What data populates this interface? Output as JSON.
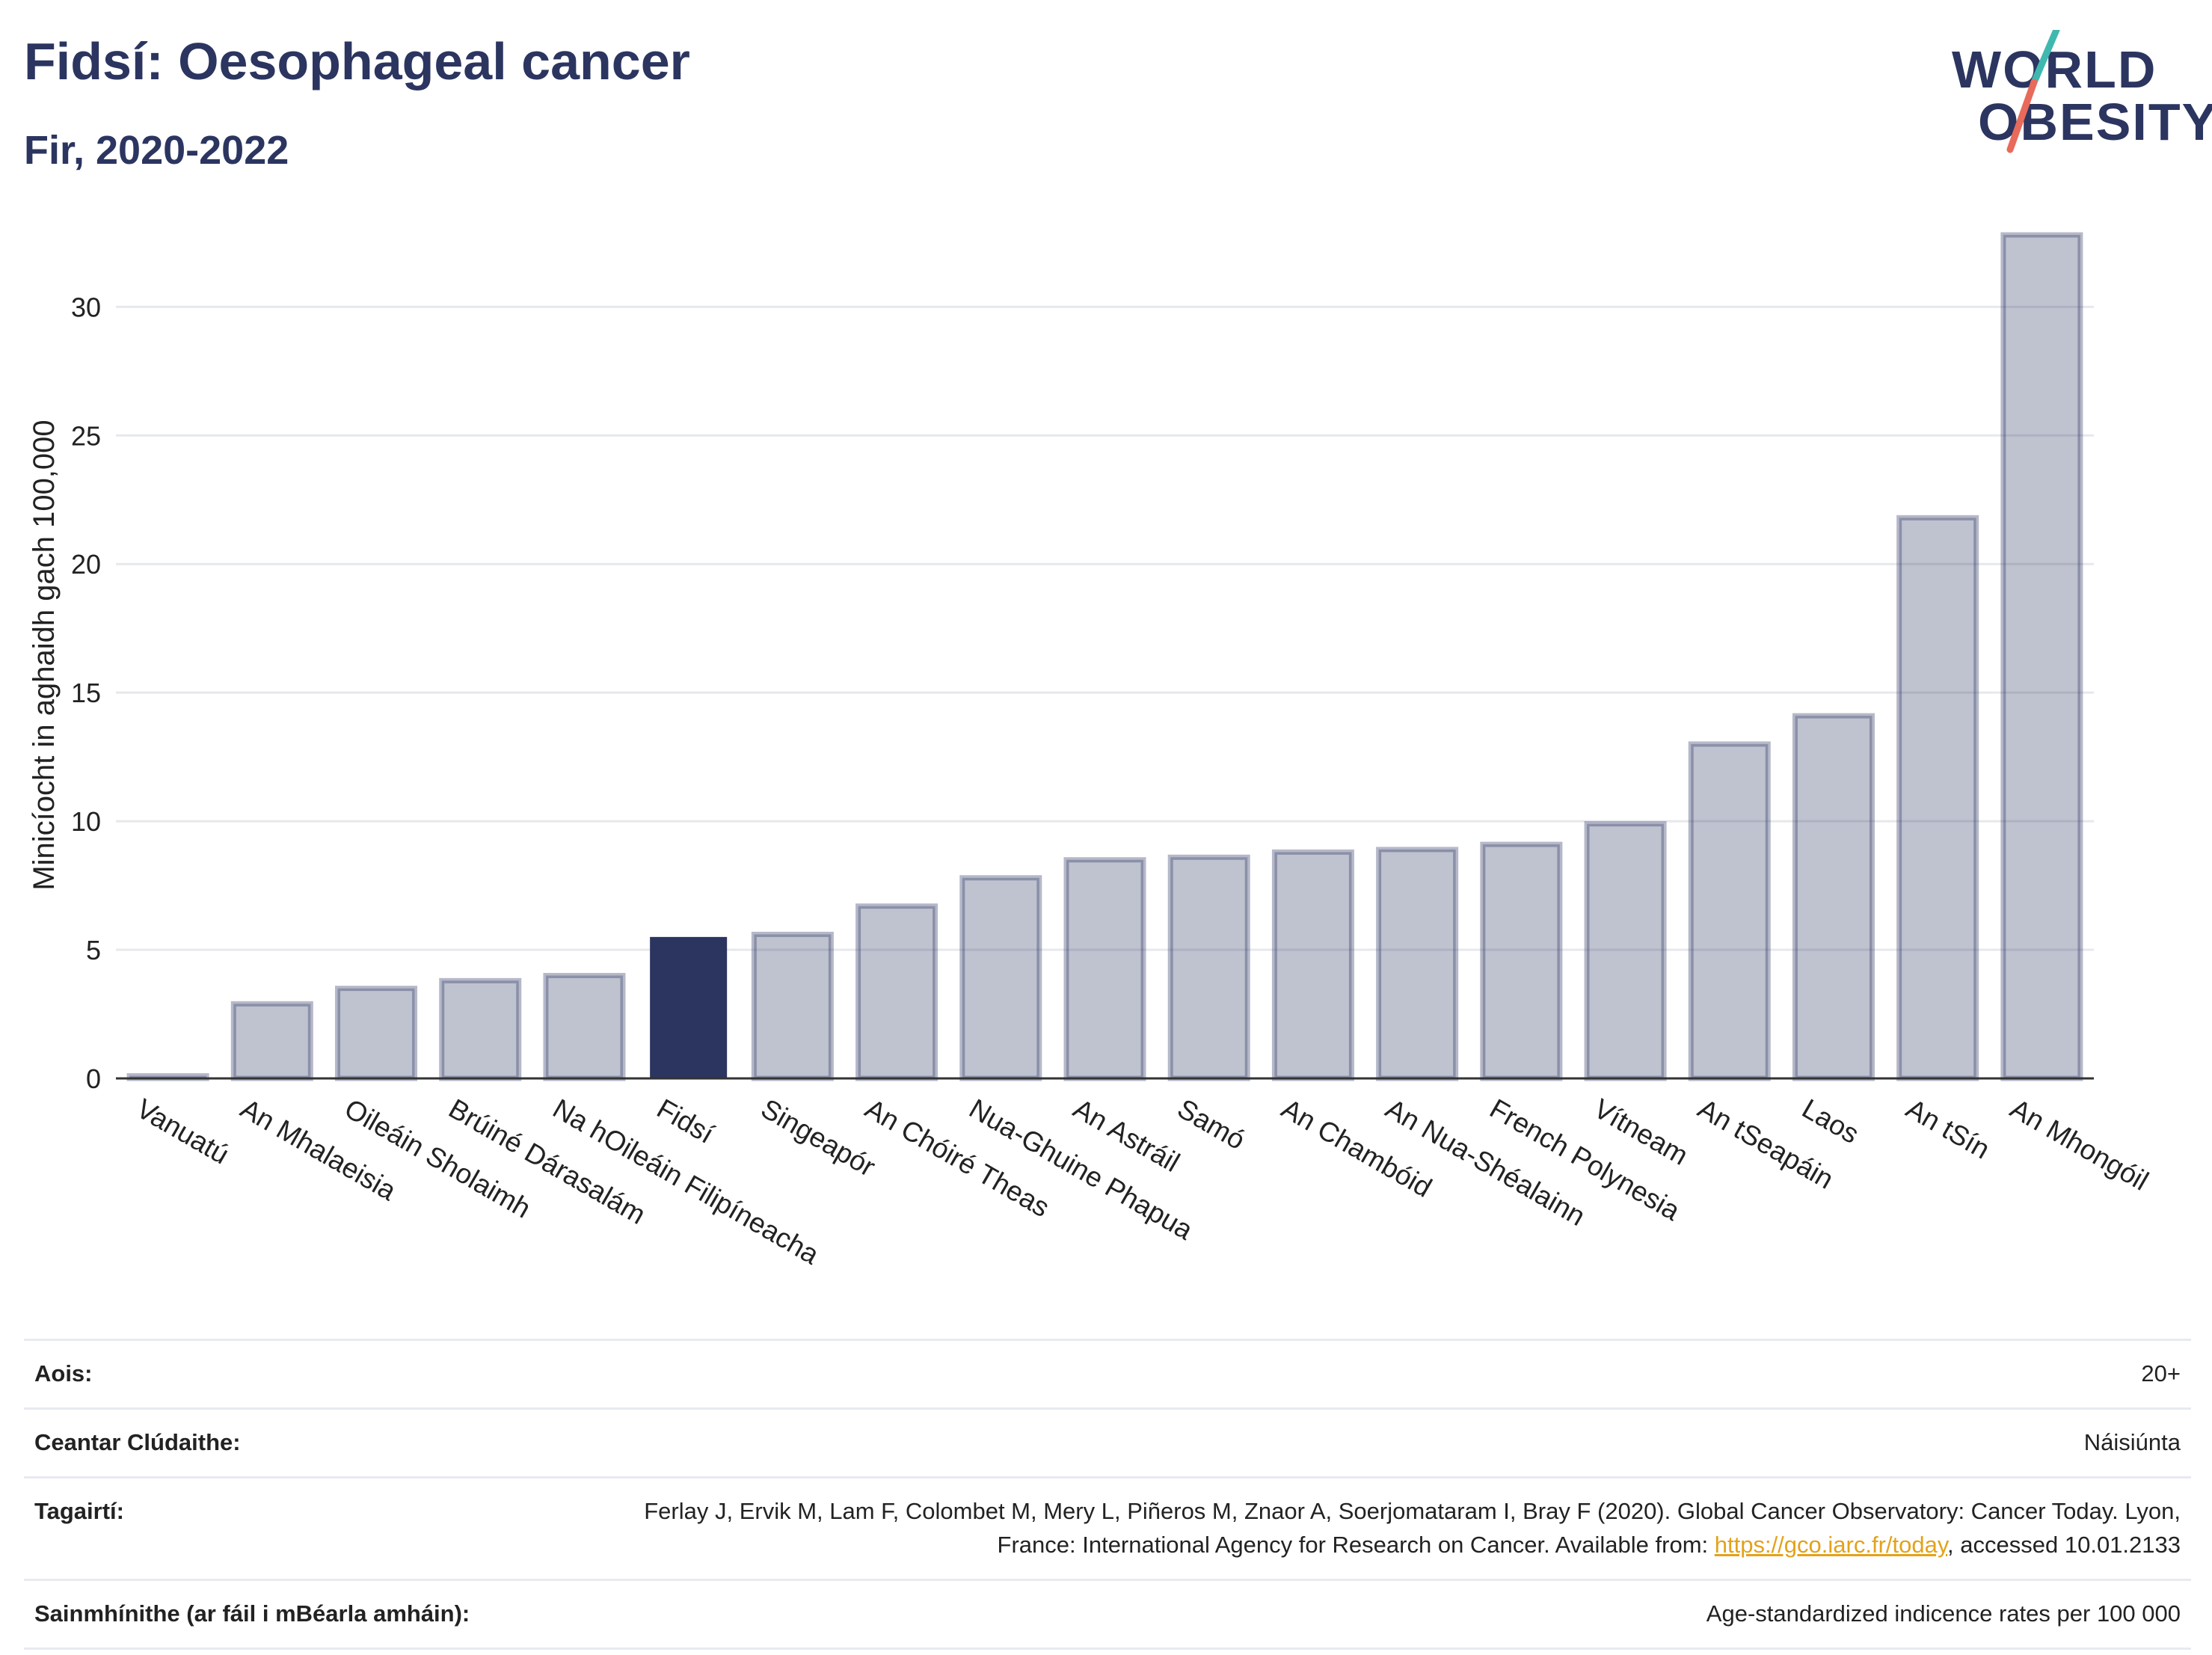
{
  "header": {
    "title": "Fidsí: Oesophageal cancer",
    "subtitle": "Fir, 2020-2022"
  },
  "logo": {
    "line1": "WORLD",
    "line2": "OBESITY",
    "colors": {
      "text": "#2b3560",
      "slash_top": "#3fb8af",
      "slash_bottom": "#e86a5a"
    }
  },
  "chart_data": {
    "type": "bar",
    "title": "Fidsí: Oesophageal cancer",
    "subtitle": "Fir, 2020-2022",
    "xlabel": "",
    "ylabel": "Minicíocht in aghaidh gach 100,000",
    "ylim": [
      0,
      33.5
    ],
    "yticks": [
      0,
      5,
      10,
      15,
      20,
      25,
      30
    ],
    "grid": true,
    "highlight_category": "Fidsí",
    "colors": {
      "default": "#2b3560",
      "default_opacity": 0.3,
      "highlight": "#2b3560"
    },
    "categories": [
      "Vanuatú",
      "An Mhalaeisia",
      "Oileáin Sholaimh",
      "Brúiné Dárasalám",
      "Na hOileáin Filipíneacha",
      "Fidsí",
      "Singeapór",
      "An Chóiré Theas",
      "Nua-Ghuine Phapua",
      "An Astráil",
      "Samó",
      "An Chambóid",
      "An Nua-Shéalainn",
      "French Polynesia",
      "Vítneam",
      "An tSeapáin",
      "Laos",
      "An tSín",
      "An Mhongóil"
    ],
    "values": [
      0.1,
      2.9,
      3.5,
      3.8,
      4.0,
      5.5,
      5.6,
      6.7,
      7.8,
      8.5,
      8.6,
      8.8,
      8.9,
      9.1,
      9.9,
      13.0,
      14.1,
      21.8,
      32.8
    ]
  },
  "info": {
    "rows": [
      {
        "key": "Aois:",
        "value": "20+"
      },
      {
        "key": "Ceantar Clúdaithe:",
        "value": "Náisiúnta"
      },
      {
        "key": "Tagairtí:",
        "value_before": "Ferlay J, Ervik M, Lam F, Colombet M, Mery L, Piñeros M, Znaor A, Soerjomataram I, Bray F (2020). Global Cancer Observatory: Cancer Today. Lyon, France: International Agency for Research on Cancer. Available from: ",
        "link": "https://gco.iarc.fr/today",
        "value_after": ", accessed 10.01.2133"
      },
      {
        "key": "Sainmhínithe (ar fáil i mBéarla amháin):",
        "value": "Age-standardized indicence rates per 100 000"
      }
    ]
  }
}
